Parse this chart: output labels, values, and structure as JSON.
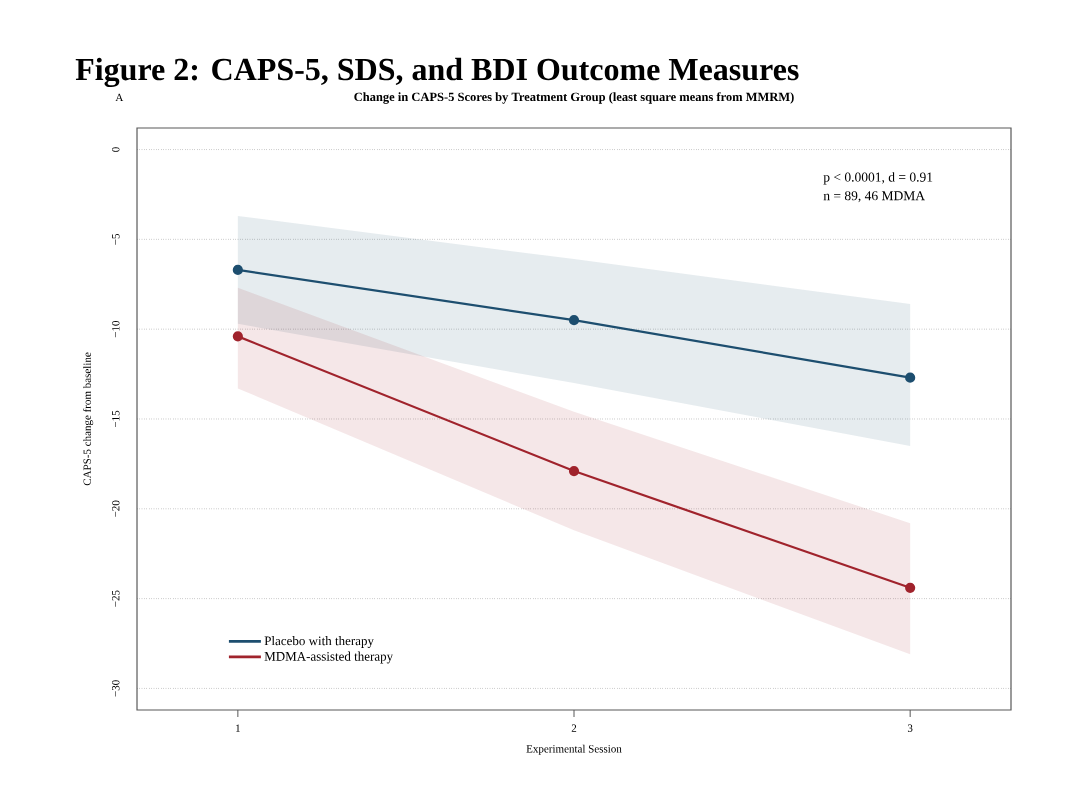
{
  "chart_data": {
    "type": "line",
    "title": "Figure 2: CAPS-5, SDS, and BDI Outcome Measures",
    "subtitle": "Change in CAPS-5 Scores by Treatment Group (least square means from MMRM)",
    "xlabel": "Experimental Session",
    "ylabel": "CAPS-5 change from baseline",
    "x": [
      1,
      2,
      3
    ],
    "series": [
      {
        "name": "Placebo with therapy",
        "color": "#1d4e6f",
        "values": [
          -6.7,
          -9.5,
          -12.7
        ],
        "lower": [
          -9.7,
          -13.0,
          -16.5
        ],
        "upper": [
          -3.7,
          -6.1,
          -8.6
        ]
      },
      {
        "name": "MDMA-assisted therapy",
        "color": "#a0232c",
        "values": [
          -10.4,
          -17.9,
          -24.4
        ],
        "lower": [
          -13.3,
          -21.2,
          -28.1
        ],
        "upper": [
          -7.7,
          -14.6,
          -20.8
        ]
      }
    ],
    "xlim": [
      0.7,
      3.3
    ],
    "xticks": [
      1,
      2,
      3
    ],
    "ylim": [
      -31.2,
      1.2
    ],
    "yticks": [
      0,
      {
        "value": -5,
        "label": "−5"
      },
      {
        "value": -10,
        "label": "−10"
      },
      {
        "value": -15,
        "label": "−15"
      },
      {
        "value": -20,
        "label": "−20"
      },
      {
        "value": -25,
        "label": "−25"
      },
      {
        "value": -30,
        "label": "−30"
      }
    ],
    "annotations": [
      "A",
      "p < 0.0001, d = 0.91",
      "n = 89, 46 MDMA"
    ],
    "grid": "y",
    "legend": "bottom left",
    "marker": "circle",
    "line_style": "solid"
  }
}
